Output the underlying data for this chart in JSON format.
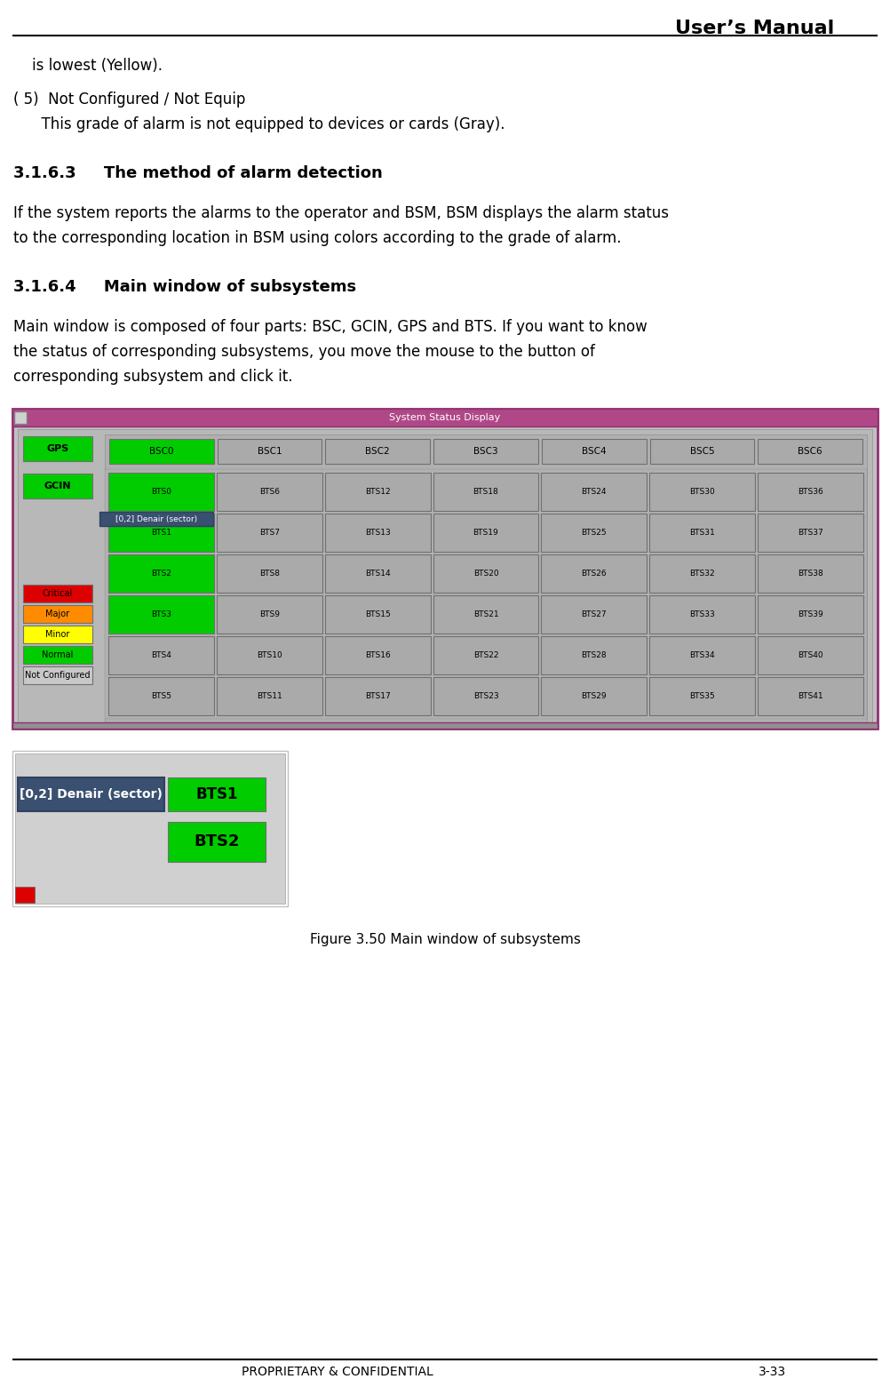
{
  "title": "User’s Manual",
  "page_num": "3-33",
  "confidential": "PROPRIETARY & CONFIDENTIAL",
  "line1": "    is lowest (Yellow).",
  "section5_header": "( 5)  Not Configured / Not Equip",
  "section5_body": "      This grade of alarm is not equipped to devices or cards (Gray).",
  "section316_3_header": "3.1.6.3     The method of alarm detection",
  "section316_3_body_1": "If the system reports the alarms to the operator and BSM, BSM displays the alarm status",
  "section316_3_body_2": "to the corresponding location in BSM using colors according to the grade of alarm.",
  "section316_4_header": "3.1.6.4     Main window of subsystems",
  "section316_4_body_1": "Main window is composed of four parts: BSC, GCIN, GPS and BTS. If you want to know",
  "section316_4_body_2": "the status of corresponding subsystems, you move the mouse to the button of",
  "section316_4_body_3": "corresponding subsystem and click it.",
  "figure_caption": "Figure 3.50 Main window of subsystems",
  "window_title": "System Status Display",
  "bg_color": "#ffffff",
  "window_bg": "#c0c0c0",
  "window_titlebar": "#b04888",
  "inner_bg": "#b8b8b8",
  "green_btn": "#00cc00",
  "red_btn": "#dd0000",
  "orange_btn": "#ff8c00",
  "yellow_btn": "#ffff00",
  "gray_btn": "#aaaaaa",
  "tooltip_bg": "#3a5070",
  "tooltip_text": "#ffffff",
  "bsc_row": [
    "BSC0",
    "BSC1",
    "BSC2",
    "BSC3",
    "BSC4",
    "BSC5",
    "BSC6"
  ],
  "bts_rows": [
    [
      "BTS0",
      "BTS6",
      "BTS12",
      "BTS18",
      "BTS24",
      "BTS30",
      "BTS36"
    ],
    [
      "BTS1",
      "BTS7",
      "BTS13",
      "BTS19",
      "BTS25",
      "BTS31",
      "BTS37"
    ],
    [
      "BTS2",
      "BTS8",
      "BTS14",
      "BTS20",
      "BTS26",
      "BTS32",
      "BTS38"
    ],
    [
      "BTS3",
      "BTS9",
      "BTS15",
      "BTS21",
      "BTS27",
      "BTS33",
      "BTS39"
    ],
    [
      "BTS4",
      "BTS10",
      "BTS16",
      "BTS22",
      "BTS28",
      "BTS34",
      "BTS40"
    ],
    [
      "BTS5",
      "BTS11",
      "BTS17",
      "BTS23",
      "BTS29",
      "BTS35",
      "BTS41"
    ]
  ],
  "green_bts": [
    "BTS0",
    "BTS1",
    "BTS2",
    "BTS3"
  ],
  "legend_items": [
    {
      "label": "Critical",
      "color": "#dd0000"
    },
    {
      "label": "Major",
      "color": "#ff8c00"
    },
    {
      "label": "Minor",
      "color": "#ffff00"
    },
    {
      "label": "Normal",
      "color": "#00cc00"
    },
    {
      "label": "Not Configured",
      "color": "#c8c8c8"
    }
  ],
  "tooltip_label": "[0,2] Denair (sector)",
  "inset_bts1": "BTS1",
  "inset_bts2": "BTS2"
}
